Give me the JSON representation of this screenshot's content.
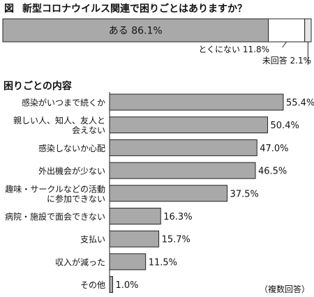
{
  "header": {
    "fig_label": "図",
    "title": "新型コロナウイルス関連で困りごとはありますか？"
  },
  "section_title": "困りごとの内容",
  "footnote": "（複数回答）",
  "colors": {
    "bar_fill": "#a9a9a9",
    "bar_stroke": "#222222",
    "background": "#ffffff"
  },
  "chart_data": [
    {
      "type": "bar",
      "orientation": "horizontal-stacked",
      "title": "新型コロナウイルス関連で困りごとはありますか？",
      "unit": "%",
      "segments": [
        {
          "label": "ある",
          "value": 86.1,
          "value_label": "86.1%",
          "color": "#a9a9a9"
        },
        {
          "label": "とくにない",
          "value": 11.8,
          "value_label": "11.8%",
          "color": "#ffffff"
        },
        {
          "label": "未回答",
          "value": 2.1,
          "value_label": "2.1%",
          "color": "#e6e6e6"
        }
      ]
    },
    {
      "type": "bar",
      "orientation": "horizontal",
      "title": "困りごとの内容",
      "unit": "%",
      "xlim": [
        0,
        55.4
      ],
      "categories": [
        [
          "感染がいつまで続くか"
        ],
        [
          "親しい人、知人、友人と",
          "会えない"
        ],
        [
          "感染しないか心配"
        ],
        [
          "外出機会が少ない"
        ],
        [
          "趣味・サークルなどの活動",
          "に参加できない"
        ],
        [
          "病院・施設で面会できない"
        ],
        [
          "支払い"
        ],
        [
          "収入が減った"
        ],
        [
          "その他"
        ]
      ],
      "values": [
        55.4,
        50.4,
        47.0,
        46.5,
        37.5,
        16.3,
        15.7,
        11.5,
        1.0
      ],
      "value_labels": [
        "55.4%",
        "50.4%",
        "47.0%",
        "46.5%",
        "37.5%",
        "16.3%",
        "15.7%",
        "11.5%",
        "1.0%"
      ]
    }
  ]
}
